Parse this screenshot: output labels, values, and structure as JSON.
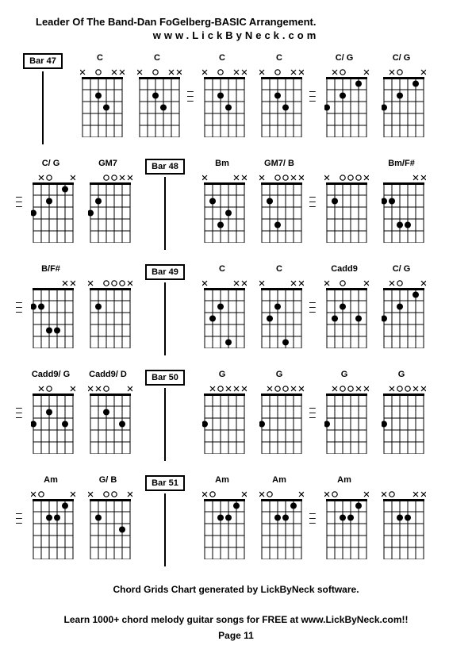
{
  "title": "Leader Of The Band-Dan FoGelberg-BASIC Arrangement.",
  "subtitle": "www.LickByNeck.com",
  "footer1": "Chord Grids Chart generated by LickByNeck software.",
  "footer2": "Learn 1000+ chord melody guitar songs for FREE at www.LickByNeck.com!!",
  "page": "Page 11",
  "layout": {
    "strings": 6,
    "frets": 5,
    "fb_width": 50,
    "fb_height": 75,
    "marker_row_h": 14
  },
  "colors": {
    "bg": "#ffffff",
    "line": "#000000",
    "dot": "#000000",
    "open": "#000000",
    "mute": "#000000"
  },
  "rows": [
    {
      "cells": [
        {
          "type": "bar",
          "label": "Bar 47"
        },
        {
          "type": "chord",
          "name": "C",
          "markers": [
            "x",
            "",
            "o",
            "",
            "x",
            "x"
          ],
          "dots": [
            [
              3,
              3
            ],
            [
              2,
              4
            ]
          ]
        },
        {
          "type": "chord",
          "name": "C",
          "markers": [
            "x",
            "",
            "o",
            "",
            "x",
            "x"
          ],
          "dots": [
            [
              3,
              3
            ],
            [
              2,
              4
            ]
          ]
        },
        {
          "type": "dash"
        },
        {
          "type": "chord",
          "name": "C",
          "markers": [
            "x",
            "",
            "o",
            "",
            "x",
            "x"
          ],
          "dots": [
            [
              3,
              3
            ],
            [
              2,
              4
            ]
          ]
        },
        {
          "type": "chord",
          "name": "C",
          "markers": [
            "x",
            "",
            "o",
            "",
            "x",
            "x"
          ],
          "dots": [
            [
              3,
              3
            ],
            [
              2,
              4
            ]
          ]
        },
        {
          "type": "dash"
        },
        {
          "type": "chord",
          "name": "C/ G",
          "markers": [
            "",
            "x",
            "o",
            "",
            "",
            "x"
          ],
          "dots": [
            [
              3,
              6
            ],
            [
              2,
              4
            ],
            [
              1,
              2
            ]
          ]
        },
        {
          "type": "chord",
          "name": "C/ G",
          "markers": [
            "",
            "x",
            "o",
            "",
            "",
            "x"
          ],
          "dots": [
            [
              3,
              6
            ],
            [
              2,
              4
            ],
            [
              1,
              2
            ]
          ]
        }
      ]
    },
    {
      "cells": [
        {
          "type": "dash"
        },
        {
          "type": "chord",
          "name": "C/ G",
          "markers": [
            "",
            "x",
            "o",
            "",
            "",
            "x"
          ],
          "dots": [
            [
              3,
              6
            ],
            [
              2,
              4
            ],
            [
              1,
              2
            ]
          ]
        },
        {
          "type": "chord",
          "name": "GM7",
          "markers": [
            "",
            "",
            "o",
            "o",
            "x",
            "x"
          ],
          "dots": [
            [
              3,
              6
            ],
            [
              2,
              5
            ]
          ]
        },
        {
          "type": "bar",
          "label": "Bar 48"
        },
        {
          "type": "chord",
          "name": "Bm",
          "markers": [
            "x",
            "",
            "",
            "",
            "x",
            "x"
          ],
          "dots": [
            [
              2,
              5
            ],
            [
              4,
              4
            ],
            [
              3,
              3
            ]
          ]
        },
        {
          "type": "chord",
          "name": "GM7/ B",
          "markers": [
            "x",
            "",
            "o",
            "o",
            "x",
            "x"
          ],
          "dots": [
            [
              2,
              5
            ],
            [
              4,
              4
            ]
          ]
        },
        {
          "type": "dash"
        },
        {
          "type": "chord",
          "name": "",
          "markers": [
            "x",
            "",
            "o",
            "o",
            "o",
            "x"
          ],
          "dots": [
            [
              2,
              5
            ]
          ]
        },
        {
          "type": "chord",
          "name": "Bm/F#",
          "markers": [
            "",
            "",
            "",
            "",
            "x",
            "x"
          ],
          "dots": [
            [
              2,
              6
            ],
            [
              2,
              5
            ],
            [
              4,
              4
            ],
            [
              4,
              3
            ]
          ]
        }
      ]
    },
    {
      "cells": [
        {
          "type": "dash"
        },
        {
          "type": "chord",
          "name": "B/F#",
          "markers": [
            "",
            "",
            "",
            "",
            "x",
            "x"
          ],
          "dots": [
            [
              2,
              6
            ],
            [
              2,
              5
            ],
            [
              4,
              4
            ],
            [
              4,
              3
            ]
          ]
        },
        {
          "type": "chord",
          "name": "",
          "markers": [
            "x",
            "",
            "o",
            "o",
            "o",
            "x"
          ],
          "dots": [
            [
              2,
              5
            ]
          ]
        },
        {
          "type": "bar",
          "label": "Bar 49"
        },
        {
          "type": "chord",
          "name": "C",
          "markers": [
            "x",
            "",
            "",
            "",
            "x",
            "x"
          ],
          "dots": [
            [
              3,
              5
            ],
            [
              2,
              4
            ],
            [
              5,
              3
            ]
          ]
        },
        {
          "type": "chord",
          "name": "C",
          "markers": [
            "x",
            "",
            "",
            "",
            "x",
            "x"
          ],
          "dots": [
            [
              3,
              5
            ],
            [
              2,
              4
            ],
            [
              5,
              3
            ]
          ]
        },
        {
          "type": "dash"
        },
        {
          "type": "chord",
          "name": "Cadd9",
          "markers": [
            "x",
            "",
            "o",
            "",
            "",
            "x"
          ],
          "dots": [
            [
              3,
              5
            ],
            [
              2,
              4
            ],
            [
              3,
              2
            ]
          ]
        },
        {
          "type": "chord",
          "name": "C/ G",
          "markers": [
            "",
            "x",
            "o",
            "",
            "",
            "x"
          ],
          "dots": [
            [
              3,
              6
            ],
            [
              2,
              4
            ],
            [
              1,
              2
            ]
          ]
        }
      ]
    },
    {
      "cells": [
        {
          "type": "dash"
        },
        {
          "type": "chord",
          "name": "Cadd9/ G",
          "markers": [
            "",
            "x",
            "o",
            "",
            "",
            "x"
          ],
          "dots": [
            [
              3,
              6
            ],
            [
              2,
              4
            ],
            [
              3,
              2
            ]
          ]
        },
        {
          "type": "chord",
          "name": "Cadd9/ D",
          "markers": [
            "x",
            "x",
            "o",
            "",
            "",
            "x"
          ],
          "dots": [
            [
              2,
              4
            ],
            [
              3,
              2
            ]
          ]
        },
        {
          "type": "bar",
          "label": "Bar 50"
        },
        {
          "type": "chord",
          "name": "G",
          "markers": [
            "",
            "x",
            "o",
            "x",
            "x",
            "x"
          ],
          "dots": [
            [
              3,
              6
            ]
          ]
        },
        {
          "type": "chord",
          "name": "G",
          "markers": [
            "",
            "x",
            "o",
            "o",
            "x",
            "x"
          ],
          "dots": [
            [
              3,
              6
            ]
          ]
        },
        {
          "type": "dash"
        },
        {
          "type": "chord",
          "name": "G",
          "markers": [
            "",
            "x",
            "o",
            "o",
            "x",
            "x"
          ],
          "dots": [
            [
              3,
              6
            ]
          ]
        },
        {
          "type": "chord",
          "name": "G",
          "markers": [
            "",
            "x",
            "o",
            "o",
            "x",
            "x"
          ],
          "dots": [
            [
              3,
              6
            ]
          ]
        }
      ]
    },
    {
      "cells": [
        {
          "type": "dash"
        },
        {
          "type": "chord",
          "name": "Am",
          "markers": [
            "x",
            "o",
            "",
            "",
            "",
            "x"
          ],
          "dots": [
            [
              2,
              4
            ],
            [
              2,
              3
            ],
            [
              1,
              2
            ]
          ]
        },
        {
          "type": "chord",
          "name": "G/ B",
          "markers": [
            "x",
            "",
            "o",
            "o",
            "",
            "x"
          ],
          "dots": [
            [
              2,
              5
            ],
            [
              3,
              2
            ]
          ]
        },
        {
          "type": "bar",
          "label": "Bar 51"
        },
        {
          "type": "chord",
          "name": "Am",
          "markers": [
            "x",
            "o",
            "",
            "",
            "",
            "x"
          ],
          "dots": [
            [
              2,
              4
            ],
            [
              2,
              3
            ],
            [
              1,
              2
            ]
          ]
        },
        {
          "type": "chord",
          "name": "Am",
          "markers": [
            "x",
            "o",
            "",
            "",
            "",
            "x"
          ],
          "dots": [
            [
              2,
              4
            ],
            [
              2,
              3
            ],
            [
              1,
              2
            ]
          ]
        },
        {
          "type": "dash"
        },
        {
          "type": "chord",
          "name": "Am",
          "markers": [
            "x",
            "o",
            "",
            "",
            "",
            "x"
          ],
          "dots": [
            [
              2,
              4
            ],
            [
              2,
              3
            ],
            [
              1,
              2
            ]
          ]
        },
        {
          "type": "chord",
          "name": "",
          "markers": [
            "x",
            "o",
            "",
            "",
            "x",
            "x"
          ],
          "dots": [
            [
              2,
              4
            ],
            [
              2,
              3
            ]
          ]
        }
      ]
    }
  ]
}
